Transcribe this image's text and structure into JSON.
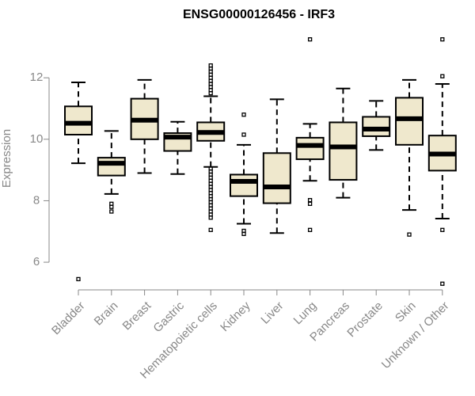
{
  "chart_data": {
    "type": "boxplot",
    "title": "ENSG00000126456 - IRF3",
    "ylabel": "Expression",
    "xlabel": "",
    "ylim": [
      5.1,
      13.5
    ],
    "yticks": [
      6,
      8,
      10,
      12
    ],
    "categories": [
      "Bladder",
      "Brain",
      "Breast",
      "Gastric",
      "Hematopoietic cells",
      "Kidney",
      "Liver",
      "Lung",
      "Pancreas",
      "Prostate",
      "Skin",
      "Unknown / Other"
    ],
    "boxes": [
      {
        "name": "Bladder",
        "whisker_low": 9.22,
        "q1": 10.15,
        "median": 10.52,
        "q3": 11.07,
        "whisker_high": 11.85,
        "outliers": [
          5.45
        ]
      },
      {
        "name": "Brain",
        "whisker_low": 8.22,
        "q1": 8.82,
        "median": 9.22,
        "q3": 9.4,
        "whisker_high": 10.27,
        "outliers": [
          7.65,
          7.8,
          7.9
        ]
      },
      {
        "name": "Breast",
        "whisker_low": 8.9,
        "q1": 10.0,
        "median": 10.62,
        "q3": 11.32,
        "whisker_high": 11.93,
        "outliers": []
      },
      {
        "name": "Gastric",
        "whisker_low": 8.87,
        "q1": 9.62,
        "median": 10.07,
        "q3": 10.2,
        "whisker_high": 10.57,
        "outliers": []
      },
      {
        "name": "Hematopoietic cells",
        "whisker_low": 9.1,
        "q1": 9.95,
        "median": 10.22,
        "q3": 10.55,
        "whisker_high": 11.4,
        "outliers": [
          7.05,
          7.45,
          7.55,
          7.65,
          7.75,
          7.85,
          7.95,
          8.05,
          8.15,
          8.25,
          8.35,
          8.45,
          8.55,
          8.65,
          8.75,
          8.85,
          8.95,
          9.05,
          11.5,
          11.6,
          11.7,
          11.8,
          11.9,
          12.0,
          12.1,
          12.2,
          12.3,
          12.4
        ]
      },
      {
        "name": "Kidney",
        "whisker_low": 7.25,
        "q1": 8.15,
        "median": 8.63,
        "q3": 8.85,
        "whisker_high": 9.82,
        "outliers": [
          6.92,
          7.02,
          10.15,
          10.8
        ]
      },
      {
        "name": "Liver",
        "whisker_low": 6.95,
        "q1": 7.92,
        "median": 8.45,
        "q3": 9.55,
        "whisker_high": 11.3,
        "outliers": []
      },
      {
        "name": "Lung",
        "whisker_low": 8.65,
        "q1": 9.35,
        "median": 9.8,
        "q3": 10.05,
        "whisker_high": 10.5,
        "outliers": [
          7.05,
          7.9,
          8.02,
          13.25
        ]
      },
      {
        "name": "Pancreas",
        "whisker_low": 8.1,
        "q1": 8.68,
        "median": 9.75,
        "q3": 10.55,
        "whisker_high": 11.65,
        "outliers": []
      },
      {
        "name": "Prostate",
        "whisker_low": 9.65,
        "q1": 10.1,
        "median": 10.33,
        "q3": 10.73,
        "whisker_high": 11.25,
        "outliers": []
      },
      {
        "name": "Skin",
        "whisker_low": 7.7,
        "q1": 9.82,
        "median": 10.67,
        "q3": 11.35,
        "whisker_high": 11.93,
        "outliers": [
          6.9
        ]
      },
      {
        "name": "Unknown / Other",
        "whisker_low": 7.42,
        "q1": 8.98,
        "median": 9.52,
        "q3": 10.12,
        "whisker_high": 11.8,
        "outliers": [
          5.3,
          7.05,
          12.05,
          13.25
        ]
      }
    ]
  }
}
